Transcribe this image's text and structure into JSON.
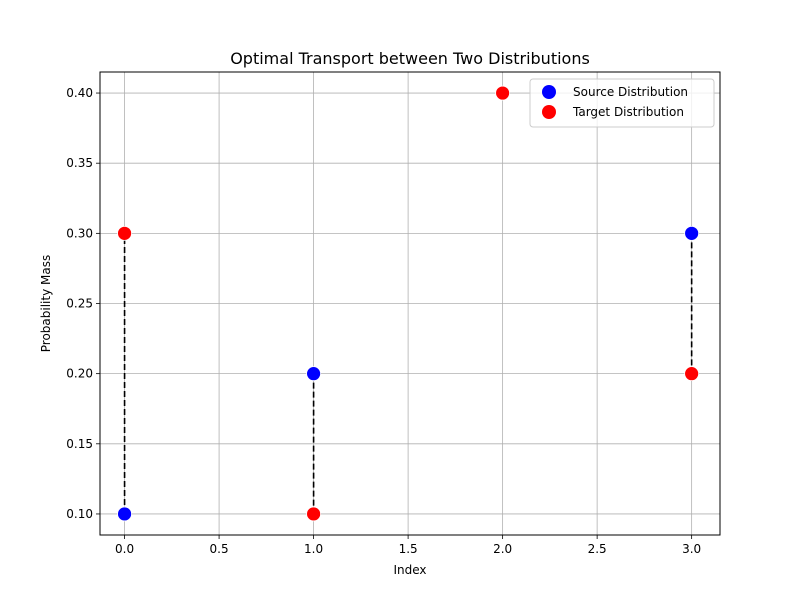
{
  "chart_data": {
    "type": "scatter",
    "title": "Optimal Transport between Two Distributions",
    "xlabel": "Index",
    "ylabel": "Probability Mass",
    "xlim": [
      -0.13,
      3.15
    ],
    "ylim": [
      0.085,
      0.415
    ],
    "xticks": [
      0.0,
      0.5,
      1.0,
      1.5,
      2.0,
      2.5,
      3.0
    ],
    "xtick_labels": [
      "0.0",
      "0.5",
      "1.0",
      "1.5",
      "2.0",
      "2.5",
      "3.0"
    ],
    "yticks": [
      0.1,
      0.15,
      0.2,
      0.25,
      0.3,
      0.35,
      0.4
    ],
    "ytick_labels": [
      "0.10",
      "0.15",
      "0.20",
      "0.25",
      "0.30",
      "0.35",
      "0.40"
    ],
    "grid": true,
    "legend_position": "top-right",
    "series": [
      {
        "name": "Source Distribution",
        "color": "#0000ff",
        "x": [
          0,
          1,
          3
        ],
        "y": [
          0.1,
          0.2,
          0.3
        ]
      },
      {
        "name": "Target Distribution",
        "color": "#ff0000",
        "x": [
          0,
          1,
          2,
          3
        ],
        "y": [
          0.3,
          0.1,
          0.4,
          0.2
        ]
      }
    ],
    "transport_lines": [
      {
        "x": 0,
        "y_from": 0.1,
        "y_to": 0.3
      },
      {
        "x": 1,
        "y_from": 0.2,
        "y_to": 0.1
      },
      {
        "x": 3,
        "y_from": 0.3,
        "y_to": 0.2
      }
    ]
  }
}
